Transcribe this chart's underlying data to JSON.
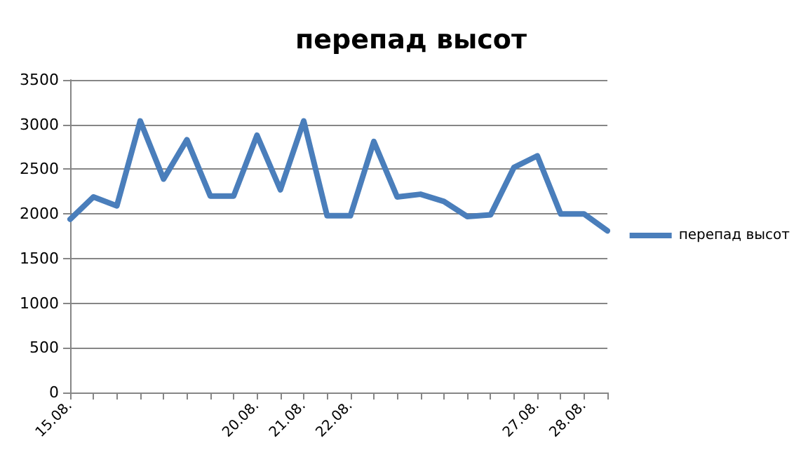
{
  "chart_data": {
    "type": "line",
    "title": "перепад высот",
    "categories": [
      "15.08.",
      null,
      null,
      null,
      null,
      null,
      null,
      null,
      "20.08.",
      null,
      "21.08.",
      null,
      "22.08.",
      null,
      null,
      null,
      null,
      null,
      null,
      null,
      "27.08.",
      null,
      "28.08.",
      null
    ],
    "series": [
      {
        "name": "перепад высот",
        "color": "#4a7ebb",
        "values": [
          1940,
          2190,
          2090,
          3040,
          2390,
          2830,
          2200,
          2200,
          2880,
          2270,
          3040,
          1980,
          1980,
          2810,
          2190,
          2220,
          2140,
          1970,
          1990,
          2520,
          2650,
          2000,
          2000,
          1810
        ]
      }
    ],
    "ylim": [
      0,
      3500
    ],
    "yticks": [
      0,
      500,
      1000,
      1500,
      2000,
      2500,
      3000,
      3500
    ],
    "grid": "y",
    "legend": "right",
    "marker": "none",
    "line_style": "solid"
  }
}
